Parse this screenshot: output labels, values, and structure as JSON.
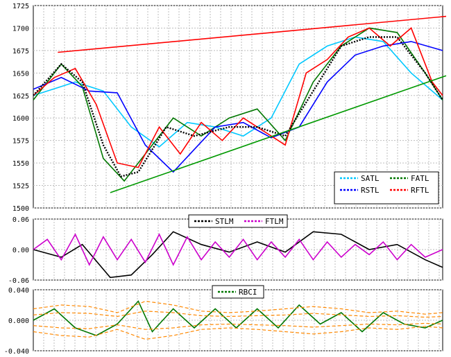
{
  "chart_data": [
    {
      "type": "line",
      "panel": "price",
      "ylim": [
        1500,
        1725
      ],
      "yticks": [
        "1500",
        "1525",
        "1550",
        "1575",
        "1600",
        "1625",
        "1650",
        "1675",
        "1700",
        "1725"
      ],
      "legend_position": "bottom-right",
      "series": [
        {
          "name": "SATL",
          "color": "#00c8ff",
          "x": [
            0,
            60,
            100,
            140,
            180,
            220,
            260,
            300,
            340,
            380,
            420,
            460,
            500,
            540,
            585
          ],
          "values": [
            1625,
            1640,
            1630,
            1590,
            1568,
            1595,
            1590,
            1580,
            1600,
            1660,
            1680,
            1690,
            1685,
            1650,
            1620
          ]
        },
        {
          "name": "FATL",
          "color": "#007700",
          "x": [
            0,
            40,
            70,
            100,
            130,
            160,
            200,
            240,
            280,
            320,
            360,
            400,
            440,
            480,
            520,
            560,
            585
          ],
          "values": [
            1620,
            1660,
            1635,
            1555,
            1530,
            1560,
            1600,
            1580,
            1600,
            1610,
            1575,
            1640,
            1680,
            1700,
            1695,
            1650,
            1620
          ]
        },
        {
          "name": "RSTL",
          "color": "#0000ff",
          "x": [
            0,
            40,
            80,
            120,
            160,
            200,
            230,
            260,
            300,
            340,
            380,
            420,
            460,
            500,
            540,
            585
          ],
          "values": [
            1632,
            1645,
            1630,
            1628,
            1570,
            1540,
            1565,
            1590,
            1595,
            1578,
            1590,
            1640,
            1670,
            1680,
            1685,
            1675
          ]
        },
        {
          "name": "RFTL",
          "color": "#ff0000",
          "x": [
            0,
            30,
            60,
            90,
            120,
            150,
            180,
            210,
            240,
            270,
            300,
            330,
            360,
            390,
            420,
            450,
            480,
            510,
            540,
            570,
            585
          ],
          "values": [
            1625,
            1645,
            1655,
            1615,
            1550,
            1545,
            1590,
            1560,
            1595,
            1575,
            1600,
            1585,
            1570,
            1650,
            1665,
            1690,
            1700,
            1680,
            1700,
            1640,
            1625
          ]
        },
        {
          "name": "",
          "color": "#000000",
          "kind": "dotted",
          "x": [
            0,
            40,
            70,
            100,
            125,
            150,
            190,
            230,
            280,
            320,
            360,
            400,
            440,
            480,
            520,
            560,
            585
          ],
          "values": [
            1625,
            1660,
            1640,
            1570,
            1535,
            1540,
            1590,
            1580,
            1590,
            1590,
            1580,
            1630,
            1680,
            1690,
            1690,
            1650,
            1620
          ]
        },
        {
          "name": "",
          "color": "#ff0000",
          "kind": "trend",
          "x": [
            35,
            590
          ],
          "values": [
            1673,
            1713
          ]
        },
        {
          "name": "",
          "color": "#009900",
          "kind": "trend",
          "x": [
            110,
            590
          ],
          "values": [
            1517,
            1647
          ]
        }
      ]
    },
    {
      "type": "line",
      "panel": "oscillator",
      "ylim": [
        -0.06,
        0.06
      ],
      "yticks": [
        "-0.06",
        "0.00",
        "0.06"
      ],
      "legend_position": "top-center",
      "series": [
        {
          "name": "STLM",
          "color": "#000000",
          "x": [
            0,
            40,
            70,
            110,
            140,
            170,
            200,
            240,
            280,
            320,
            360,
            400,
            440,
            480,
            520,
            560,
            585
          ],
          "values": [
            0,
            -0.015,
            0.01,
            -0.055,
            -0.05,
            -0.01,
            0.035,
            0.01,
            -0.005,
            0.015,
            -0.005,
            0.035,
            0.03,
            0.0,
            0.01,
            -0.02,
            -0.035
          ]
        },
        {
          "name": "FTLM",
          "color": "#cc00cc",
          "x": [
            0,
            20,
            40,
            60,
            80,
            100,
            120,
            140,
            160,
            180,
            200,
            220,
            240,
            260,
            280,
            300,
            320,
            340,
            360,
            380,
            400,
            420,
            440,
            460,
            480,
            500,
            520,
            540,
            560,
            585
          ],
          "values": [
            0,
            0.02,
            -0.02,
            0.03,
            -0.03,
            0.025,
            -0.02,
            0.02,
            -0.025,
            0.03,
            -0.03,
            0.025,
            -0.02,
            0.015,
            -0.015,
            0.02,
            -0.02,
            0.015,
            -0.015,
            0.02,
            -0.02,
            0.015,
            -0.015,
            0.01,
            -0.01,
            0.015,
            -0.02,
            0.01,
            -0.015,
            0.0
          ]
        }
      ]
    },
    {
      "type": "line",
      "panel": "rbci",
      "ylim": [
        -0.04,
        0.04
      ],
      "yticks": [
        "-0.040",
        "0.000",
        "0.040"
      ],
      "legend_position": "top-center",
      "series": [
        {
          "name": "RBCI",
          "color": "#007700",
          "x": [
            0,
            30,
            60,
            90,
            120,
            150,
            170,
            200,
            230,
            260,
            290,
            320,
            350,
            380,
            410,
            440,
            470,
            500,
            530,
            560,
            585
          ],
          "values": [
            0,
            0.015,
            -0.01,
            -0.02,
            -0.005,
            0.025,
            -0.015,
            0.015,
            -0.01,
            0.015,
            -0.01,
            0.015,
            -0.01,
            0.02,
            -0.005,
            0.01,
            -0.015,
            0.01,
            -0.005,
            -0.01,
            0.0
          ]
        },
        {
          "name": "",
          "color": "#ff8800",
          "kind": "dashed",
          "x": [
            0,
            40,
            80,
            120,
            160,
            200,
            240,
            280,
            320,
            360,
            400,
            440,
            480,
            520,
            560,
            585
          ],
          "values": [
            0.015,
            0.02,
            0.018,
            0.01,
            0.025,
            0.02,
            0.012,
            0.01,
            0.012,
            0.015,
            0.018,
            0.015,
            0.01,
            0.012,
            0.008,
            0.01
          ]
        },
        {
          "name": "",
          "color": "#ff8800",
          "kind": "dashed",
          "x": [
            0,
            40,
            80,
            120,
            160,
            200,
            240,
            280,
            320,
            360,
            400,
            440,
            480,
            520,
            560,
            585
          ],
          "values": [
            -0.015,
            -0.02,
            -0.022,
            -0.012,
            -0.025,
            -0.02,
            -0.012,
            -0.01,
            -0.012,
            -0.015,
            -0.018,
            -0.015,
            -0.01,
            -0.012,
            -0.008,
            -0.01
          ]
        },
        {
          "name": "",
          "color": "#ff8800",
          "kind": "dashed",
          "x": [
            0,
            40,
            80,
            120,
            160,
            200,
            240,
            280,
            320,
            360,
            400,
            440,
            480,
            520,
            560,
            585
          ],
          "values": [
            0.007,
            0.01,
            0.009,
            0.005,
            0.012,
            0.01,
            0.006,
            0.005,
            0.006,
            0.007,
            0.009,
            0.007,
            0.005,
            0.006,
            0.004,
            0.005
          ]
        },
        {
          "name": "",
          "color": "#ff8800",
          "kind": "dashed",
          "x": [
            0,
            40,
            80,
            120,
            160,
            200,
            240,
            280,
            320,
            360,
            400,
            440,
            480,
            520,
            560,
            585
          ],
          "values": [
            -0.007,
            -0.01,
            -0.011,
            -0.006,
            -0.012,
            -0.01,
            -0.006,
            -0.005,
            -0.006,
            -0.007,
            -0.009,
            -0.007,
            -0.005,
            -0.006,
            -0.004,
            -0.005
          ]
        }
      ]
    }
  ]
}
